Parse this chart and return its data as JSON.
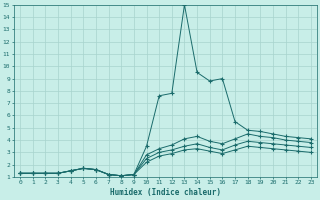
{
  "background_color": "#c8eee8",
  "grid_color": "#a8d4ce",
  "line_color": "#1a6b6b",
  "xlabel": "Humidex (Indice chaleur)",
  "xlim": [
    -0.5,
    23.5
  ],
  "ylim": [
    1,
    15
  ],
  "xticks": [
    0,
    1,
    2,
    3,
    4,
    5,
    6,
    7,
    8,
    9,
    10,
    11,
    12,
    13,
    14,
    15,
    16,
    17,
    18,
    19,
    20,
    21,
    22,
    23
  ],
  "yticks": [
    1,
    2,
    3,
    4,
    5,
    6,
    7,
    8,
    9,
    10,
    11,
    12,
    13,
    14,
    15
  ],
  "x_vals": [
    0,
    1,
    2,
    3,
    4,
    5,
    6,
    7,
    8,
    9,
    10,
    11,
    12,
    13,
    14,
    15,
    16,
    17,
    18,
    19,
    20,
    21,
    22,
    23
  ],
  "lines": [
    [
      1.3,
      1.3,
      1.3,
      1.3,
      1.5,
      1.7,
      1.6,
      1.2,
      1.1,
      1.2,
      3.5,
      7.6,
      7.8,
      15.0,
      9.5,
      8.8,
      9.0,
      5.5,
      4.8,
      4.7,
      4.5,
      4.3,
      4.2,
      4.1
    ],
    [
      1.3,
      1.3,
      1.3,
      1.3,
      1.5,
      1.7,
      1.6,
      1.2,
      1.1,
      1.2,
      2.8,
      3.3,
      3.6,
      4.1,
      4.3,
      3.9,
      3.7,
      4.1,
      4.5,
      4.3,
      4.2,
      4.0,
      3.9,
      3.8
    ],
    [
      1.3,
      1.3,
      1.3,
      1.3,
      1.5,
      1.7,
      1.6,
      1.2,
      1.1,
      1.2,
      2.5,
      3.0,
      3.2,
      3.5,
      3.7,
      3.4,
      3.2,
      3.6,
      3.9,
      3.8,
      3.7,
      3.6,
      3.5,
      3.4
    ],
    [
      1.3,
      1.3,
      1.3,
      1.3,
      1.5,
      1.7,
      1.6,
      1.2,
      1.1,
      1.2,
      2.2,
      2.7,
      2.9,
      3.2,
      3.3,
      3.1,
      2.9,
      3.2,
      3.5,
      3.4,
      3.3,
      3.2,
      3.1,
      3.0
    ]
  ]
}
